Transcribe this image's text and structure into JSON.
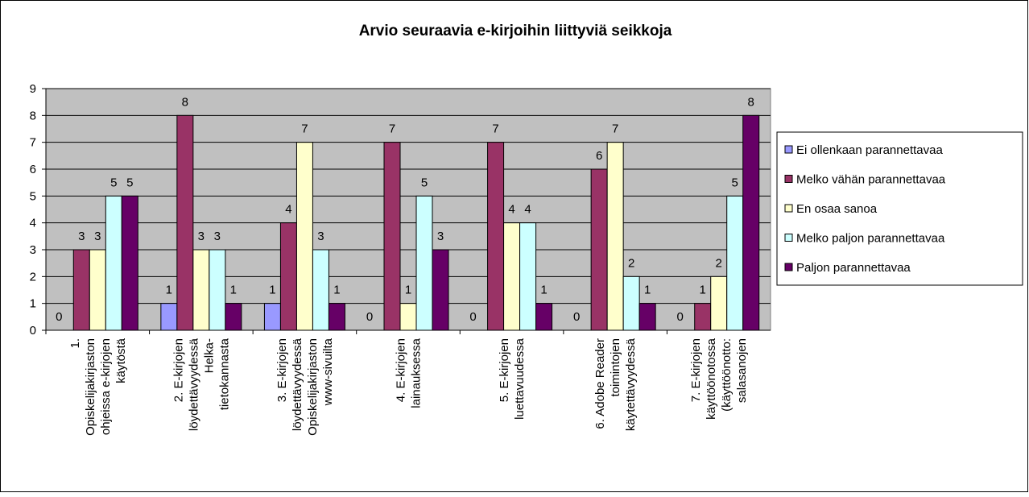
{
  "chart_data": {
    "type": "bar",
    "title": "Arvio seuraavia e-kirjoihin liittyviä seikkoja",
    "categories": [
      [
        "1.",
        "Opiskelijakirjaston",
        "ohjeissa e-kirjojen",
        "käytöstä"
      ],
      [
        "2. E-kirjojen",
        "löydettävyydessä",
        "Helka-",
        "tietokannasta"
      ],
      [
        "3. E-kirjojen",
        "löydettävyydessä",
        "Opiskelijakirjaston",
        "www-sivuilta"
      ],
      [
        "4. E-kirjojen",
        "lainauksessa"
      ],
      [
        "5. E-kirjojen",
        "luettavuudessa"
      ],
      [
        "6. Adobe Reader",
        "toimintojen",
        "käytettävyydessä"
      ],
      [
        "7. E-kirjojen",
        "käyttöönotossa",
        "(käyttöönotto:",
        "salasanojen"
      ]
    ],
    "series": [
      {
        "name": "Ei ollenkaan parannettavaa",
        "color": "#9999ff",
        "values": [
          0,
          1,
          1,
          0,
          0,
          0,
          0
        ]
      },
      {
        "name": "Melko vähän parannettavaa",
        "color": "#993366",
        "values": [
          3,
          8,
          4,
          7,
          7,
          6,
          1
        ]
      },
      {
        "name": "En osaa sanoa",
        "color": "#ffffcc",
        "values": [
          3,
          3,
          7,
          1,
          4,
          7,
          2
        ]
      },
      {
        "name": "Melko paljon parannettavaa",
        "color": "#ccffff",
        "values": [
          5,
          3,
          3,
          5,
          4,
          2,
          5
        ]
      },
      {
        "name": "Paljon parannettavaa",
        "color": "#660066",
        "values": [
          5,
          1,
          1,
          3,
          1,
          1,
          8
        ]
      }
    ],
    "ylim": [
      0,
      9
    ],
    "yticks": [
      0,
      1,
      2,
      3,
      4,
      5,
      6,
      7,
      8,
      9
    ],
    "grid": true,
    "legend": "right"
  }
}
